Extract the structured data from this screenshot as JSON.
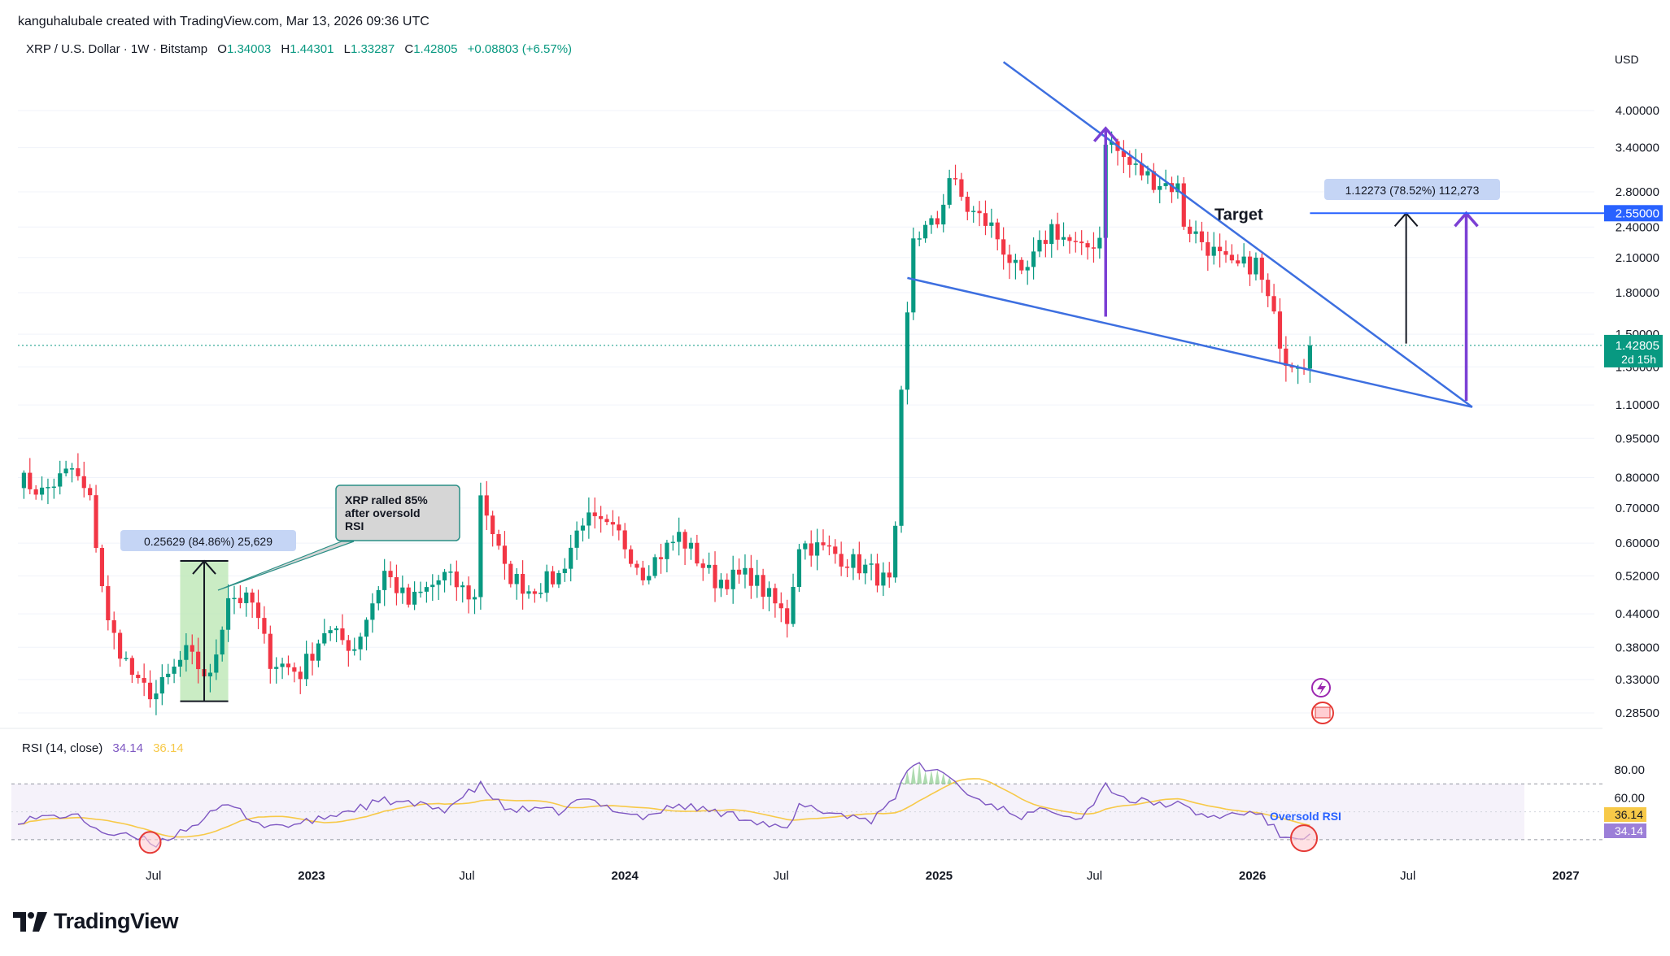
{
  "header": {
    "credit": "kanguhalubale created with TradingView.com, Mar 13, 2026 09:36 UTC",
    "symbol": "XRP / U.S. Dollar · 1W · Bitstamp",
    "ohlc": {
      "o_label": "O",
      "o": "1.34003",
      "h_label": "H",
      "h": "1.44301",
      "l_label": "L",
      "l": "1.33287",
      "c_label": "C",
      "c": "1.42805",
      "change": "+0.08803 (+6.57%)"
    }
  },
  "axis": {
    "currency": "USD"
  },
  "rsi": {
    "label": "RSI (14, close)",
    "rsi_value": "34.14",
    "ma_value": "36.14"
  },
  "logo": {
    "text": "TradingView",
    "icon": "tradingview-logo-icon"
  },
  "chart_data": {
    "type": "candlestick",
    "y_scale": "log",
    "ylim": [
      0.25,
      5.0
    ],
    "y_ticks": [
      4.0,
      3.4,
      2.8,
      2.4,
      2.1,
      1.8,
      1.5,
      1.3,
      1.1,
      0.95,
      0.8,
      0.7,
      0.6,
      0.52,
      0.44,
      0.38,
      0.33,
      0.285
    ],
    "y_tick_labels": [
      "4.00000",
      "3.40000",
      "2.80000",
      "2.40000",
      "2.10000",
      "1.80000",
      "1.50000",
      "1.30000",
      "1.10000",
      "0.95000",
      "0.80000",
      "0.70000",
      "0.60000",
      "0.52000",
      "0.44000",
      "0.38000",
      "0.33000",
      "0.28500"
    ],
    "x_range": [
      "2022-01-24",
      "2027-01-20"
    ],
    "x_ticks": [
      {
        "date": "2022-07-01",
        "label": "Jul",
        "bold": false
      },
      {
        "date": "2023-01-01",
        "label": "2023",
        "bold": true
      },
      {
        "date": "2023-07-01",
        "label": "Jul",
        "bold": false
      },
      {
        "date": "2024-01-01",
        "label": "2024",
        "bold": true
      },
      {
        "date": "2024-07-01",
        "label": "Jul",
        "bold": false
      },
      {
        "date": "2025-01-01",
        "label": "2025",
        "bold": true
      },
      {
        "date": "2025-07-01",
        "label": "Jul",
        "bold": false
      },
      {
        "date": "2026-01-01",
        "label": "2026",
        "bold": true
      },
      {
        "date": "2026-07-01",
        "label": "Jul",
        "bold": false
      },
      {
        "date": "2027-01-01",
        "label": "2027",
        "bold": true
      }
    ],
    "price_anchors": [
      [
        "2022-01-24",
        0.8
      ],
      [
        "2022-02-21",
        0.75
      ],
      [
        "2022-03-28",
        0.83
      ],
      [
        "2022-04-18",
        0.72
      ],
      [
        "2022-05-09",
        0.42
      ],
      [
        "2022-06-13",
        0.32
      ],
      [
        "2022-07-04",
        0.31
      ],
      [
        "2022-08-08",
        0.37
      ],
      [
        "2022-09-05",
        0.33
      ],
      [
        "2022-09-26",
        0.48
      ],
      [
        "2022-10-24",
        0.46
      ],
      [
        "2022-11-07",
        0.39
      ],
      [
        "2022-11-14",
        0.36
      ],
      [
        "2022-12-19",
        0.34
      ],
      [
        "2023-01-16",
        0.41
      ],
      [
        "2023-02-20",
        0.38
      ],
      [
        "2023-03-27",
        0.53
      ],
      [
        "2023-04-24",
        0.46
      ],
      [
        "2023-06-05",
        0.52
      ],
      [
        "2023-07-10",
        0.47
      ],
      [
        "2023-07-17",
        0.75
      ],
      [
        "2023-08-14",
        0.53
      ],
      [
        "2023-09-11",
        0.49
      ],
      [
        "2023-10-16",
        0.52
      ],
      [
        "2023-11-13",
        0.67
      ],
      [
        "2023-12-25",
        0.62
      ],
      [
        "2024-01-22",
        0.53
      ],
      [
        "2024-03-04",
        0.62
      ],
      [
        "2024-04-15",
        0.51
      ],
      [
        "2024-05-27",
        0.52
      ],
      [
        "2024-07-08",
        0.43
      ],
      [
        "2024-07-22",
        0.6
      ],
      [
        "2024-08-26",
        0.58
      ],
      [
        "2024-10-14",
        0.53
      ],
      [
        "2024-11-04",
        0.5
      ],
      [
        "2024-11-11",
        0.62
      ],
      [
        "2024-11-18",
        1.13
      ],
      [
        "2024-12-02",
        2.3
      ],
      [
        "2024-12-30",
        2.45
      ],
      [
        "2025-01-13",
        3.0
      ],
      [
        "2025-02-03",
        2.6
      ],
      [
        "2025-03-03",
        2.4
      ],
      [
        "2025-04-07",
        1.9
      ],
      [
        "2025-05-12",
        2.4
      ],
      [
        "2025-06-16",
        2.15
      ],
      [
        "2025-07-07",
        2.3
      ],
      [
        "2025-07-14",
        3.55
      ],
      [
        "2025-08-11",
        3.15
      ],
      [
        "2025-09-08",
        2.95
      ],
      [
        "2025-10-06",
        2.85
      ],
      [
        "2025-10-13",
        2.45
      ],
      [
        "2025-11-10",
        2.2
      ],
      [
        "2025-12-08",
        2.0
      ],
      [
        "2026-01-05",
        2.05
      ],
      [
        "2026-01-26",
        1.6
      ],
      [
        "2026-02-09",
        1.35
      ],
      [
        "2026-03-02",
        1.34
      ],
      [
        "2026-03-09",
        1.42805
      ]
    ],
    "rsi_anchors": [
      [
        "2022-01-24",
        44
      ],
      [
        "2022-03-28",
        48
      ],
      [
        "2022-05-09",
        34
      ],
      [
        "2022-06-13",
        31
      ],
      [
        "2022-07-04",
        27
      ],
      [
        "2022-08-08",
        38
      ],
      [
        "2022-09-26",
        55
      ],
      [
        "2022-11-07",
        40
      ],
      [
        "2022-12-19",
        41
      ],
      [
        "2023-03-27",
        58
      ],
      [
        "2023-06-05",
        52
      ],
      [
        "2023-07-17",
        69
      ],
      [
        "2023-08-14",
        52
      ],
      [
        "2023-10-16",
        50
      ],
      [
        "2023-11-13",
        59
      ],
      [
        "2024-01-22",
        46
      ],
      [
        "2024-03-04",
        55
      ],
      [
        "2024-05-27",
        45
      ],
      [
        "2024-07-08",
        36
      ],
      [
        "2024-07-22",
        54
      ],
      [
        "2024-10-14",
        44
      ],
      [
        "2024-11-11",
        62
      ],
      [
        "2024-12-02",
        84
      ],
      [
        "2025-01-13",
        76
      ],
      [
        "2025-02-03",
        62
      ],
      [
        "2025-04-07",
        47
      ],
      [
        "2025-05-12",
        52
      ],
      [
        "2025-06-16",
        46
      ],
      [
        "2025-07-14",
        69
      ],
      [
        "2025-08-11",
        58
      ],
      [
        "2025-10-06",
        55
      ],
      [
        "2025-11-10",
        46
      ],
      [
        "2026-01-05",
        50
      ],
      [
        "2026-02-09",
        30
      ],
      [
        "2026-03-09",
        34.14
      ]
    ],
    "rsi_ylim": [
      20,
      90
    ],
    "rsi_ticks": [
      80,
      60
    ],
    "rsi_levels": {
      "overbought": 70,
      "oversold": 30
    },
    "annotations": {
      "measure_left": "0.25629 (84.86%) 25,629",
      "callout": [
        "XRP ralled 85%",
        "after oversold",
        "RSI"
      ],
      "measure_right": "1.12273 (78.52%) 112,273",
      "target_label": "Target",
      "target_price": "2.55000",
      "target_value": 2.55,
      "oversold_label": "Oversold RSI"
    },
    "price_badge": {
      "price": "1.42805",
      "countdown": "2d 15h"
    },
    "rsi_badges": {
      "ma": "36.14",
      "rsi": "34.14"
    },
    "colors": {
      "up": "#089981",
      "down": "#f23645",
      "trend": "#3d6fe0",
      "purple": "#7b3fd4",
      "rsi": "#7e57c2",
      "rsi_ma": "#f7c948",
      "target": "#2962ff"
    }
  }
}
